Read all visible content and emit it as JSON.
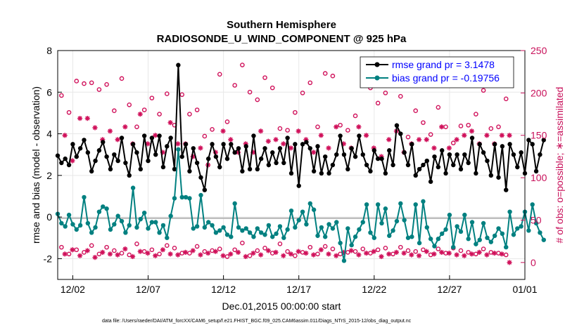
{
  "chart_data": {
    "type": "line",
    "title": "Southern Hemisphere",
    "subtitle": "RADIOSONDE_U_WIND_COMPONENT @ 925 hPa",
    "xlabel": "Dec.01,2015 00:00:00 start",
    "ylabel": "rmse and bias (model - observation)",
    "ylabel_right": "# of obs: o=possible; ∗=assimilated",
    "xlim": [
      0,
      124
    ],
    "ylim": [
      -3,
      8
    ],
    "ylim_right": [
      -20,
      250
    ],
    "x_ticks": [
      {
        "x": 4,
        "label": "12/02"
      },
      {
        "x": 24,
        "label": "12/07"
      },
      {
        "x": 44,
        "label": "12/12"
      },
      {
        "x": 64,
        "label": "12/17"
      },
      {
        "x": 84,
        "label": "12/22"
      },
      {
        "x": 104,
        "label": "12/27"
      },
      {
        "x": 124,
        "label": "01/01"
      }
    ],
    "y_ticks": [
      -2,
      0,
      2,
      4,
      6,
      8
    ],
    "y_ticks_right": [
      0,
      50,
      100,
      150,
      200,
      250
    ],
    "legend": [
      "rmse grand pr = 3.1478",
      "bias grand pr = -0.19756"
    ],
    "legend_position": "top-right",
    "colors": {
      "rmse": "#000000",
      "bias": "#008080",
      "obs": "#d0105a",
      "zero_line": "#b4b4b4",
      "grid": "#e8e8e8"
    },
    "series": [
      {
        "name": "rmse",
        "values": [
          2.95,
          2.6,
          2.8,
          2.5,
          3.5,
          2.9,
          3.3,
          3.7,
          3.1,
          2.2,
          2.7,
          3.2,
          3.6,
          2.9,
          2.3,
          3.0,
          2.7,
          3.8,
          2.6,
          2.0,
          3.5,
          3.1,
          2.3,
          3.9,
          2.7,
          3.8,
          3.0,
          3.9,
          2.4,
          3.4,
          3.8,
          2.3,
          7.3,
          2.9,
          3.5,
          2.2,
          3.3,
          2.6,
          1.9,
          1.3,
          2.8,
          3.5,
          2.9,
          2.4,
          3.5,
          2.8,
          3.5,
          3.1,
          3.3,
          2.2,
          3.4,
          2.3,
          3.9,
          2.3,
          2.8,
          3.3,
          2.5,
          3.1,
          2.6,
          3.3,
          2.6,
          3.8,
          2.1,
          3.5,
          1.5,
          3.5,
          3.6,
          3.3,
          2.2,
          3.4,
          2.1,
          2.9,
          2.1,
          2.5,
          3.0,
          3.9,
          3.0,
          2.3,
          3.3,
          2.9,
          3.9,
          3.0,
          2.5,
          2.2,
          3.2,
          2.8,
          2.8,
          2.1,
          3.2,
          2.5,
          4.4,
          4.0,
          3.1,
          2.5,
          3.5,
          2.0,
          2.3,
          2.5,
          2.7,
          1.7,
          2.9,
          2.4,
          3.2,
          2.1,
          3.0,
          2.5,
          3.0,
          2.3,
          3.0,
          2.6,
          3.8,
          2.1,
          3.5,
          3.1,
          2.7,
          2.0,
          3.5,
          1.9,
          3.4,
          1.3,
          3.5,
          3.0,
          2.4,
          3.1,
          2.1,
          3.7,
          3.5,
          2.2,
          3.0,
          3.7
        ],
        "marker": "circle-filled"
      },
      {
        "name": "bias",
        "values": [
          0.15,
          -0.3,
          -0.45,
          0.1,
          -0.35,
          -0.6,
          -0.4,
          0.95,
          -0.3,
          -0.75,
          -0.5,
          0.25,
          0.5,
          0.4,
          -0.6,
          -0.35,
          0.05,
          -0.2,
          -0.75,
          -0.4,
          1.4,
          -0.5,
          -0.1,
          0.2,
          -0.55,
          -0.25,
          -0.25,
          -0.75,
          -0.4,
          -1.0,
          0.05,
          0.9,
          3.25,
          0.95,
          0.95,
          0.9,
          -0.55,
          -0.45,
          1.05,
          -0.5,
          -0.25,
          -0.4,
          -0.75,
          -0.65,
          -0.5,
          -0.85,
          -0.95,
          0.65,
          -0.5,
          -0.65,
          -0.55,
          -0.75,
          -0.95,
          -0.55,
          -0.75,
          -0.85,
          -0.4,
          -0.95,
          -0.8,
          -0.45,
          -1.0,
          -0.6,
          0.3,
          -0.5,
          -0.15,
          0.25,
          -0.35,
          0.65,
          0.35,
          -0.9,
          -0.5,
          -0.95,
          -0.35,
          -0.55,
          -0.25,
          -1.25,
          -2.1,
          -0.55,
          -1.35,
          -0.95,
          -0.6,
          -0.25,
          0.6,
          -0.75,
          -1.0,
          0.6,
          -0.3,
          0.4,
          -0.9,
          -0.65,
          -0.2,
          0.65,
          -0.15,
          -1.0,
          -0.95,
          0.6,
          -1.25,
          0.75,
          -0.5,
          -1.05,
          -1.4,
          -1.05,
          -0.8,
          -0.6,
          0.1,
          -1.45,
          -0.45,
          -0.7,
          0.1,
          -1.05,
          -0.25,
          -1.3,
          -1.1,
          -0.3,
          -1.0,
          -1.2,
          -0.9,
          -0.55,
          -0.8,
          -1.45,
          0.25,
          -0.85,
          -0.55,
          -0.45,
          0.25,
          -0.65,
          0.6,
          -0.3,
          -0.75,
          -1.1
        ],
        "marker": "circle-filled"
      },
      {
        "name": "obs possible",
        "values": [
          197,
          177,
          214,
          211,
          212,
          204,
          210,
          179,
          217,
          186,
          160,
          180,
          194,
          175,
          199,
          162,
          198,
          175,
          180,
          149,
          157,
          222,
          166,
          209,
          233,
          201,
          192,
          218,
          206,
          158,
          156,
          177,
          200,
          212,
          160,
          223,
          220,
          162,
          156,
          173,
          221,
          206,
          188,
          200,
          214,
          196,
          148,
          179,
          165,
          151,
          183,
          160,
          141,
          161,
          162,
          175,
          203,
          158,
          160,
          193
        ],
        "x_step": 2,
        "marker": "circle-open"
      },
      {
        "name": "obs assimilated",
        "values": [
          150,
          120,
          170,
          170,
          159,
          145,
          155,
          145,
          160,
          140,
          175,
          140,
          150,
          130,
          165,
          140,
          140,
          125,
          135,
          115,
          130,
          155,
          145,
          130,
          140,
          130,
          155,
          143,
          145,
          140,
          135,
          155,
          145,
          130,
          150,
          135,
          160,
          140,
          135,
          160,
          150,
          135,
          125,
          145,
          155,
          130,
          140,
          145,
          145,
          135,
          160,
          135,
          145,
          150,
          155,
          140,
          150,
          140,
          150,
          150
        ],
        "x_step": 2,
        "marker": "asterisk"
      },
      {
        "name": "obs possible low",
        "values": [
          18,
          10,
          15,
          12,
          20,
          10,
          18,
          14,
          11,
          9,
          22,
          13,
          15,
          10,
          20,
          17,
          11,
          11,
          19,
          13,
          14,
          16,
          7,
          15,
          23,
          8,
          14,
          17,
          11,
          22,
          13,
          8,
          12,
          18,
          10,
          19,
          16,
          10,
          12,
          13,
          16,
          11,
          15,
          17,
          10,
          18,
          14,
          13,
          15,
          9,
          16,
          11,
          17,
          14,
          12,
          10,
          16,
          12,
          11,
          9
        ],
        "x_step": 2,
        "marker": "circle-open"
      },
      {
        "name": "obs assimilated low",
        "values": [
          10,
          15,
          8,
          14,
          6,
          12,
          10,
          9,
          16,
          7,
          13,
          11,
          8,
          15,
          10,
          9,
          12,
          14,
          9,
          11,
          13,
          8,
          10,
          12,
          7,
          11,
          9,
          14,
          12,
          8,
          10,
          13,
          11,
          9,
          15,
          10,
          8,
          12,
          14,
          9,
          11,
          13,
          7,
          10,
          12,
          11,
          9,
          8,
          13,
          10,
          12,
          11,
          9,
          8,
          10,
          12,
          9,
          11,
          10,
          0
        ],
        "x_step": 2,
        "marker": "asterisk"
      }
    ]
  },
  "footer": {
    "data_file": "data file: /Users/raeder/DAI/ATM_forcXX/CAM6_setup/f.e21.FHIST_BGC.f09_025.CAM6assim.011/Diags_NTrS_2015-12/obs_diag_output.nc"
  }
}
